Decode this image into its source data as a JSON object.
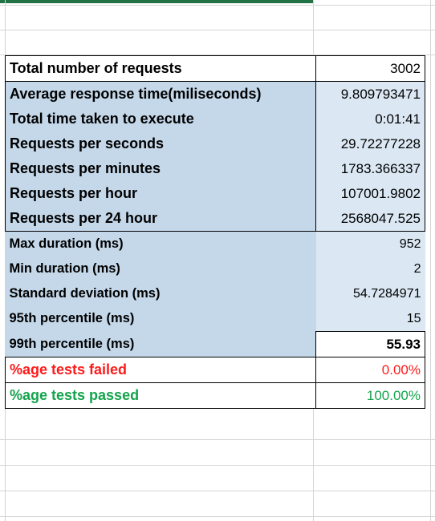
{
  "colors": {
    "label_fill": "#c4d8ea",
    "value_fill": "#dbe8f4",
    "failed_text": "#ff1a1a",
    "passed_text": "#14a44d",
    "selection_bar": "#217346"
  },
  "rows": [
    {
      "label": "Total number of requests",
      "value": "3002"
    },
    {
      "label": "Average response time(miliseconds)",
      "value": "9.809793471"
    },
    {
      "label": "Total time taken to execute",
      "value": "0:01:41"
    },
    {
      "label": "Requests per seconds",
      "value": "29.72277228"
    },
    {
      "label": "Requests per minutes",
      "value": "1783.366337"
    },
    {
      "label": "Requests per hour",
      "value": "107001.9802"
    },
    {
      "label": "Requests per 24 hour",
      "value": "2568047.525"
    },
    {
      "label": "Max duration (ms)",
      "value": "952"
    },
    {
      "label": "Min duration (ms)",
      "value": "2"
    },
    {
      "label": "Standard deviation (ms)",
      "value": "54.7284971"
    },
    {
      "label": "95th percentile (ms)",
      "value": "15"
    },
    {
      "label": "99th percentile (ms)",
      "value": "55.93"
    },
    {
      "label": "%age tests failed",
      "value": "0.00%"
    },
    {
      "label": "%age tests passed",
      "value": "100.00%"
    }
  ]
}
